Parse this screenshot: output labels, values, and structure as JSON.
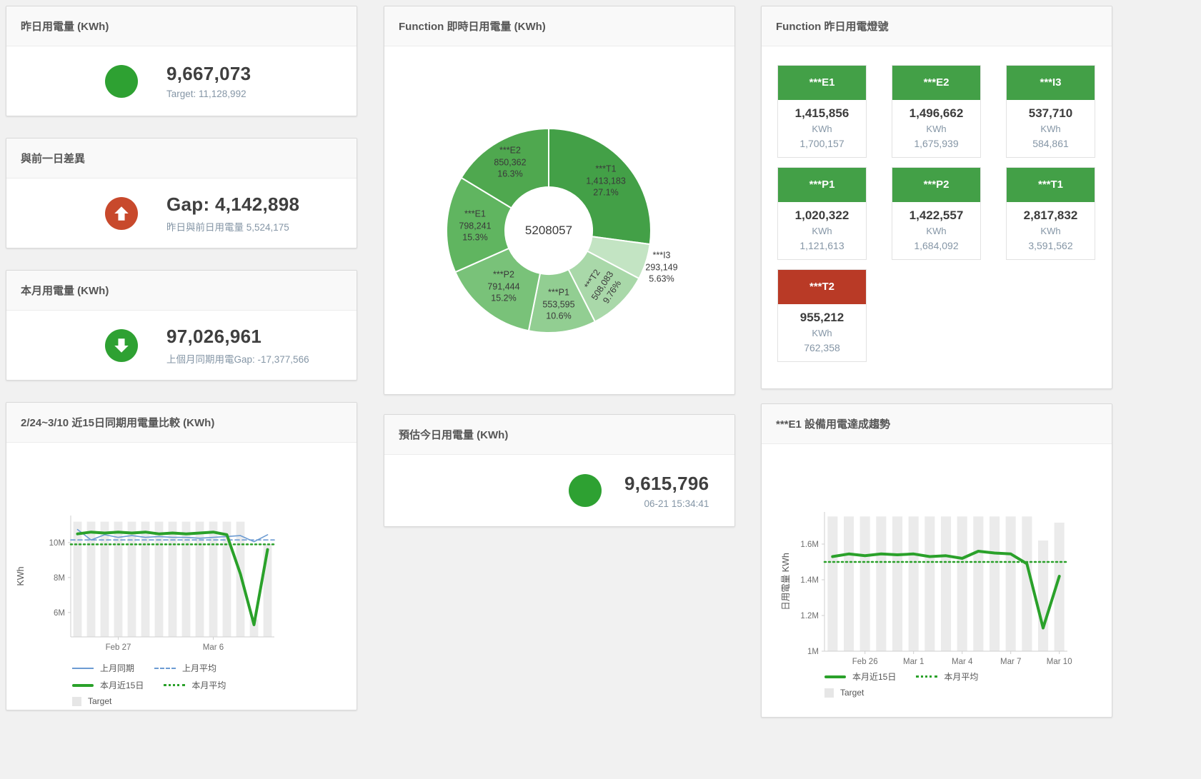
{
  "colors": {
    "green_icon": "#2ea132",
    "green_tile": "#43a047",
    "red_icon": "#c8492c",
    "red_tile": "#b93a26",
    "chart_green": "#2aa12a",
    "chart_blue": "#6c9bd2",
    "target_bar_gray": "#ebebeb",
    "subtitle_gray": "#8596a6"
  },
  "panels": {
    "yesterday": {
      "title": "昨日用電量 (KWh)",
      "value": "9,667,073",
      "subtitle": "Target: 11,128,992",
      "indicator": "green-circle"
    },
    "gap": {
      "title": "與前一日差異",
      "value": "Gap: 4,142,898",
      "subtitle": "昨日與前日用電量 5,524,175",
      "indicator": "red-arrow-up"
    },
    "month": {
      "title": "本月用電量 (KWh)",
      "value": "97,026,961",
      "subtitle": "上個月同期用電Gap: -17,377,566",
      "indicator": "green-arrow-down"
    },
    "estimate": {
      "title": "預估今日用電量 (KWh)",
      "value": "9,615,796",
      "subtitle": "06-21 15:34:41",
      "indicator": "green-circle"
    }
  },
  "lights": {
    "title": "Function 昨日用電燈號",
    "tiles": [
      {
        "name": "***E1",
        "value": "1,415,856",
        "unit": "KWh",
        "prev": "1,700,157",
        "status": "green"
      },
      {
        "name": "***E2",
        "value": "1,496,662",
        "unit": "KWh",
        "prev": "1,675,939",
        "status": "green"
      },
      {
        "name": "***I3",
        "value": "537,710",
        "unit": "KWh",
        "prev": "584,861",
        "status": "green"
      },
      {
        "name": "***P1",
        "value": "1,020,322",
        "unit": "KWh",
        "prev": "1,121,613",
        "status": "green"
      },
      {
        "name": "***P2",
        "value": "1,422,557",
        "unit": "KWh",
        "prev": "1,684,092",
        "status": "green"
      },
      {
        "name": "***T1",
        "value": "2,817,832",
        "unit": "KWh",
        "prev": "3,591,562",
        "status": "green"
      },
      {
        "name": "***T2",
        "value": "955,212",
        "unit": "KWh",
        "prev": "762,358",
        "status": "red"
      }
    ]
  },
  "chart_data": [
    {
      "id": "compare-15day",
      "type": "line",
      "title": "2/24~3/10 近15日同期用電量比較 (KWh)",
      "ylabel": "KWh",
      "x_count": 15,
      "ylim": [
        4600000,
        11550000
      ],
      "yticks": [
        {
          "v": 6000000,
          "label": "6M"
        },
        {
          "v": 8000000,
          "label": "8M"
        },
        {
          "v": 10000000,
          "label": "10M"
        }
      ],
      "xticks": [
        {
          "i": 3,
          "label": "Feb 27"
        },
        {
          "i": 10,
          "label": "Mar 6"
        }
      ],
      "grid": false,
      "legend_position": "bottom-left",
      "bars": {
        "name": "Target",
        "color": "#ebebeb",
        "values": [
          11200000,
          11200000,
          11200000,
          11200000,
          11200000,
          11200000,
          11200000,
          11200000,
          11200000,
          11200000,
          11200000,
          11200000,
          11200000,
          5600000,
          9900000
        ]
      },
      "lines": [
        {
          "name": "上月同期",
          "color": "#6c9bd2",
          "width": 1.6,
          "values": [
            10750000,
            10150000,
            10450000,
            10300000,
            10400000,
            10300000,
            10350000,
            10300000,
            10300000,
            10250000,
            10300000,
            10350000,
            10400000,
            10050000,
            10450000
          ]
        },
        {
          "name": "上月平均",
          "color": "#6c9bd2",
          "width": 1.6,
          "dash": "6,4",
          "constant": 10150000
        },
        {
          "name": "本月近15日",
          "color": "#2aa12a",
          "width": 4,
          "values": [
            10500000,
            10600000,
            10550000,
            10600000,
            10550000,
            10600000,
            10500000,
            10550000,
            10500000,
            10550000,
            10600000,
            10450000,
            8200000,
            5300000,
            9600000
          ]
        },
        {
          "name": "本月平均",
          "color": "#2aa12a",
          "width": 2.5,
          "dash": "2,4",
          "constant": 9900000
        }
      ],
      "legend_rows": [
        [
          {
            "marker": "thin-blue",
            "label": "上月同期"
          },
          {
            "marker": "dash-blue",
            "label": "上月平均"
          }
        ],
        [
          {
            "marker": "thick-green",
            "label": "本月近15日"
          },
          {
            "marker": "dot-green",
            "label": "本月平均"
          }
        ],
        [
          {
            "marker": "square",
            "label": "Target"
          }
        ]
      ]
    },
    {
      "id": "realtime-function-donut",
      "type": "pie",
      "title": "Function 即時日用電量 (KWh)",
      "center_total": "5208057",
      "slices": [
        {
          "name": "***T1",
          "value": 1413183,
          "value_label": "1,413,183",
          "pct": "27.1%",
          "color": "#43a047",
          "label_r": 0.74,
          "rotate": 0
        },
        {
          "name": "***I3",
          "value": 293149,
          "value_label": "293,149",
          "pct": "5.63%",
          "color": "#c3e4c3",
          "label_r": 1.16,
          "rotate": 0
        },
        {
          "name": "***T2",
          "value": 508083,
          "value_label": "508,083",
          "pct": "9.76%",
          "color": "#a9d8a9",
          "label_r": 0.75,
          "rotate": -57
        },
        {
          "name": "***P1",
          "value": 553595,
          "value_label": "553,595",
          "pct": "10.6%",
          "color": "#92ce92",
          "label_r": 0.73,
          "rotate": 0
        },
        {
          "name": "***P2",
          "value": 791444,
          "value_label": "791,444",
          "pct": "15.2%",
          "color": "#79c279",
          "label_r": 0.7,
          "rotate": 0
        },
        {
          "name": "***E1",
          "value": 798241,
          "value_label": "798,241",
          "pct": "15.3%",
          "color": "#60b560",
          "label_r": 0.72,
          "rotate": 0
        },
        {
          "name": "***E2",
          "value": 850362,
          "value_label": "850,362",
          "pct": "16.3%",
          "color": "#4fa84f",
          "label_r": 0.77,
          "rotate": 0
        }
      ]
    },
    {
      "id": "e1-trend",
      "type": "line",
      "title": "***E1 設備用電達成趨勢",
      "ylabel": "日用電量 KWh",
      "x_count": 15,
      "ylim": [
        1000000,
        1780000
      ],
      "yticks": [
        {
          "v": 1000000,
          "label": "1M"
        },
        {
          "v": 1200000,
          "label": "1.2M"
        },
        {
          "v": 1400000,
          "label": "1.4M"
        },
        {
          "v": 1600000,
          "label": "1.6M"
        }
      ],
      "xticks": [
        {
          "i": 2,
          "label": "Feb 26"
        },
        {
          "i": 5,
          "label": "Mar 1"
        },
        {
          "i": 8,
          "label": "Mar 4"
        },
        {
          "i": 11,
          "label": "Mar 7"
        },
        {
          "i": 14,
          "label": "Mar 10"
        }
      ],
      "grid": false,
      "legend_position": "bottom-left",
      "bars": {
        "name": "Target",
        "color": "#ebebeb",
        "values": [
          1755000,
          1755000,
          1755000,
          1755000,
          1755000,
          1755000,
          1755000,
          1755000,
          1755000,
          1755000,
          1755000,
          1755000,
          1755000,
          1620000,
          1720000
        ]
      },
      "lines": [
        {
          "name": "本月近15日",
          "color": "#2aa12a",
          "width": 4,
          "values": [
            1530000,
            1545000,
            1535000,
            1545000,
            1540000,
            1545000,
            1530000,
            1535000,
            1520000,
            1560000,
            1550000,
            1545000,
            1490000,
            1130000,
            1420000
          ]
        },
        {
          "name": "本月平均",
          "color": "#2aa12a",
          "width": 2.5,
          "dash": "2,4",
          "constant": 1500000
        }
      ],
      "legend_rows": [
        [
          {
            "marker": "thick-green",
            "label": "本月近15日"
          },
          {
            "marker": "dot-green",
            "label": "本月平均"
          }
        ],
        [
          {
            "marker": "square",
            "label": "Target"
          }
        ]
      ]
    }
  ]
}
